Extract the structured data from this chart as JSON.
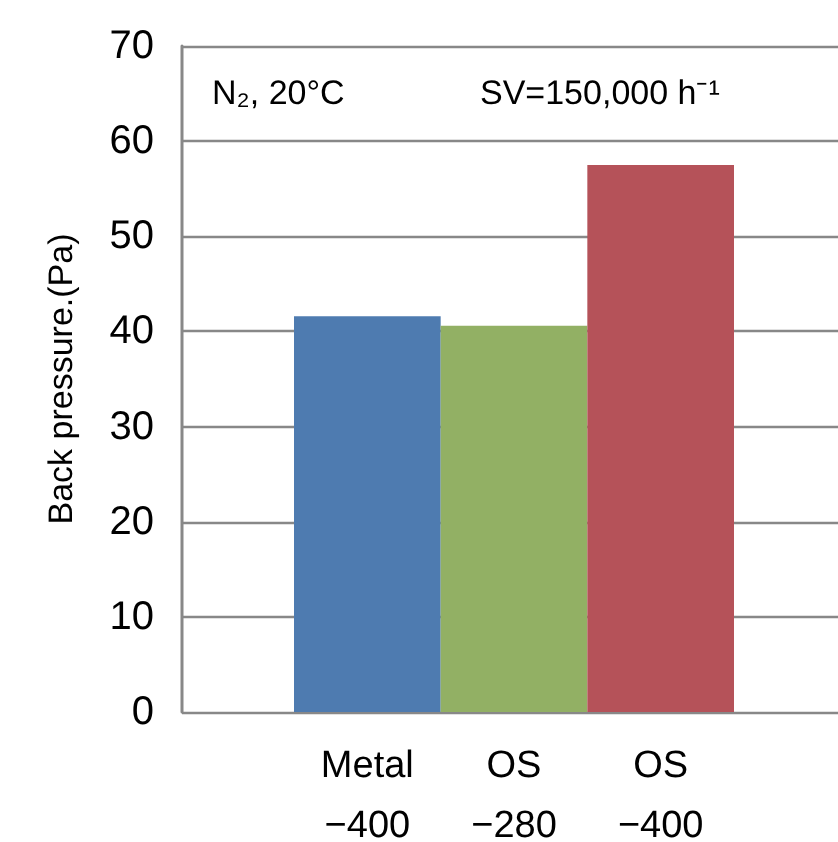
{
  "chart_data": {
    "type": "bar",
    "ylabel": "Back pressure.(Pa)",
    "categories": [
      "Metal\n−400",
      "OS\n−280",
      "OS\n−400"
    ],
    "values": [
      41.6,
      40.6,
      57.5
    ],
    "colors": [
      "#4e7bb0",
      "#92b064",
      "#b55259"
    ],
    "ylim": [
      0,
      70
    ],
    "yticks": [
      0,
      10,
      20,
      30,
      40,
      50,
      60,
      70
    ],
    "grid": "y",
    "annotations": [
      "N₂, 20°C",
      "SV=150,000 h⁻¹"
    ]
  }
}
